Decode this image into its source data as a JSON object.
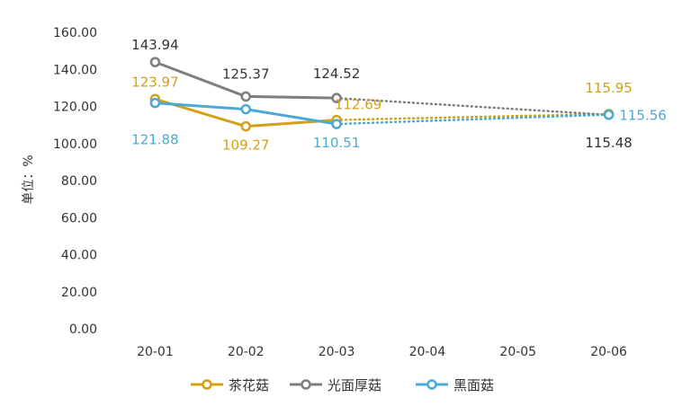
{
  "chart_data": {
    "type": "line",
    "categories": [
      "20-01",
      "20-02",
      "20-03",
      "20-04",
      "20-05",
      "20-06"
    ],
    "ylabel": "单位：%",
    "ylim": [
      0,
      160
    ],
    "y_ticks": [
      "0.00",
      "20.00",
      "40.00",
      "60.00",
      "80.00",
      "100.00",
      "120.00",
      "140.00",
      "160.00"
    ],
    "grid": false,
    "legend_position": "bottom-center",
    "series": [
      {
        "name": "茶花菇",
        "color": "#D4A017",
        "values": [
          123.97,
          109.27,
          112.69,
          null,
          null,
          115.95
        ],
        "labels": [
          "123.97",
          "109.27",
          "112.69",
          "",
          "",
          "115.95"
        ]
      },
      {
        "name": "光面厚菇",
        "color": "#7F7F7F",
        "values": [
          143.94,
          125.37,
          124.52,
          null,
          null,
          115.48
        ],
        "labels": [
          "143.94",
          "125.37",
          "124.52",
          "",
          "",
          "115.48"
        ]
      },
      {
        "name": "黑面菇",
        "color": "#4BA9D6",
        "values": [
          121.88,
          118.5,
          110.51,
          null,
          null,
          115.56
        ],
        "labels": [
          "121.88",
          "",
          "110.51",
          "",
          "",
          "115.56"
        ]
      }
    ]
  }
}
